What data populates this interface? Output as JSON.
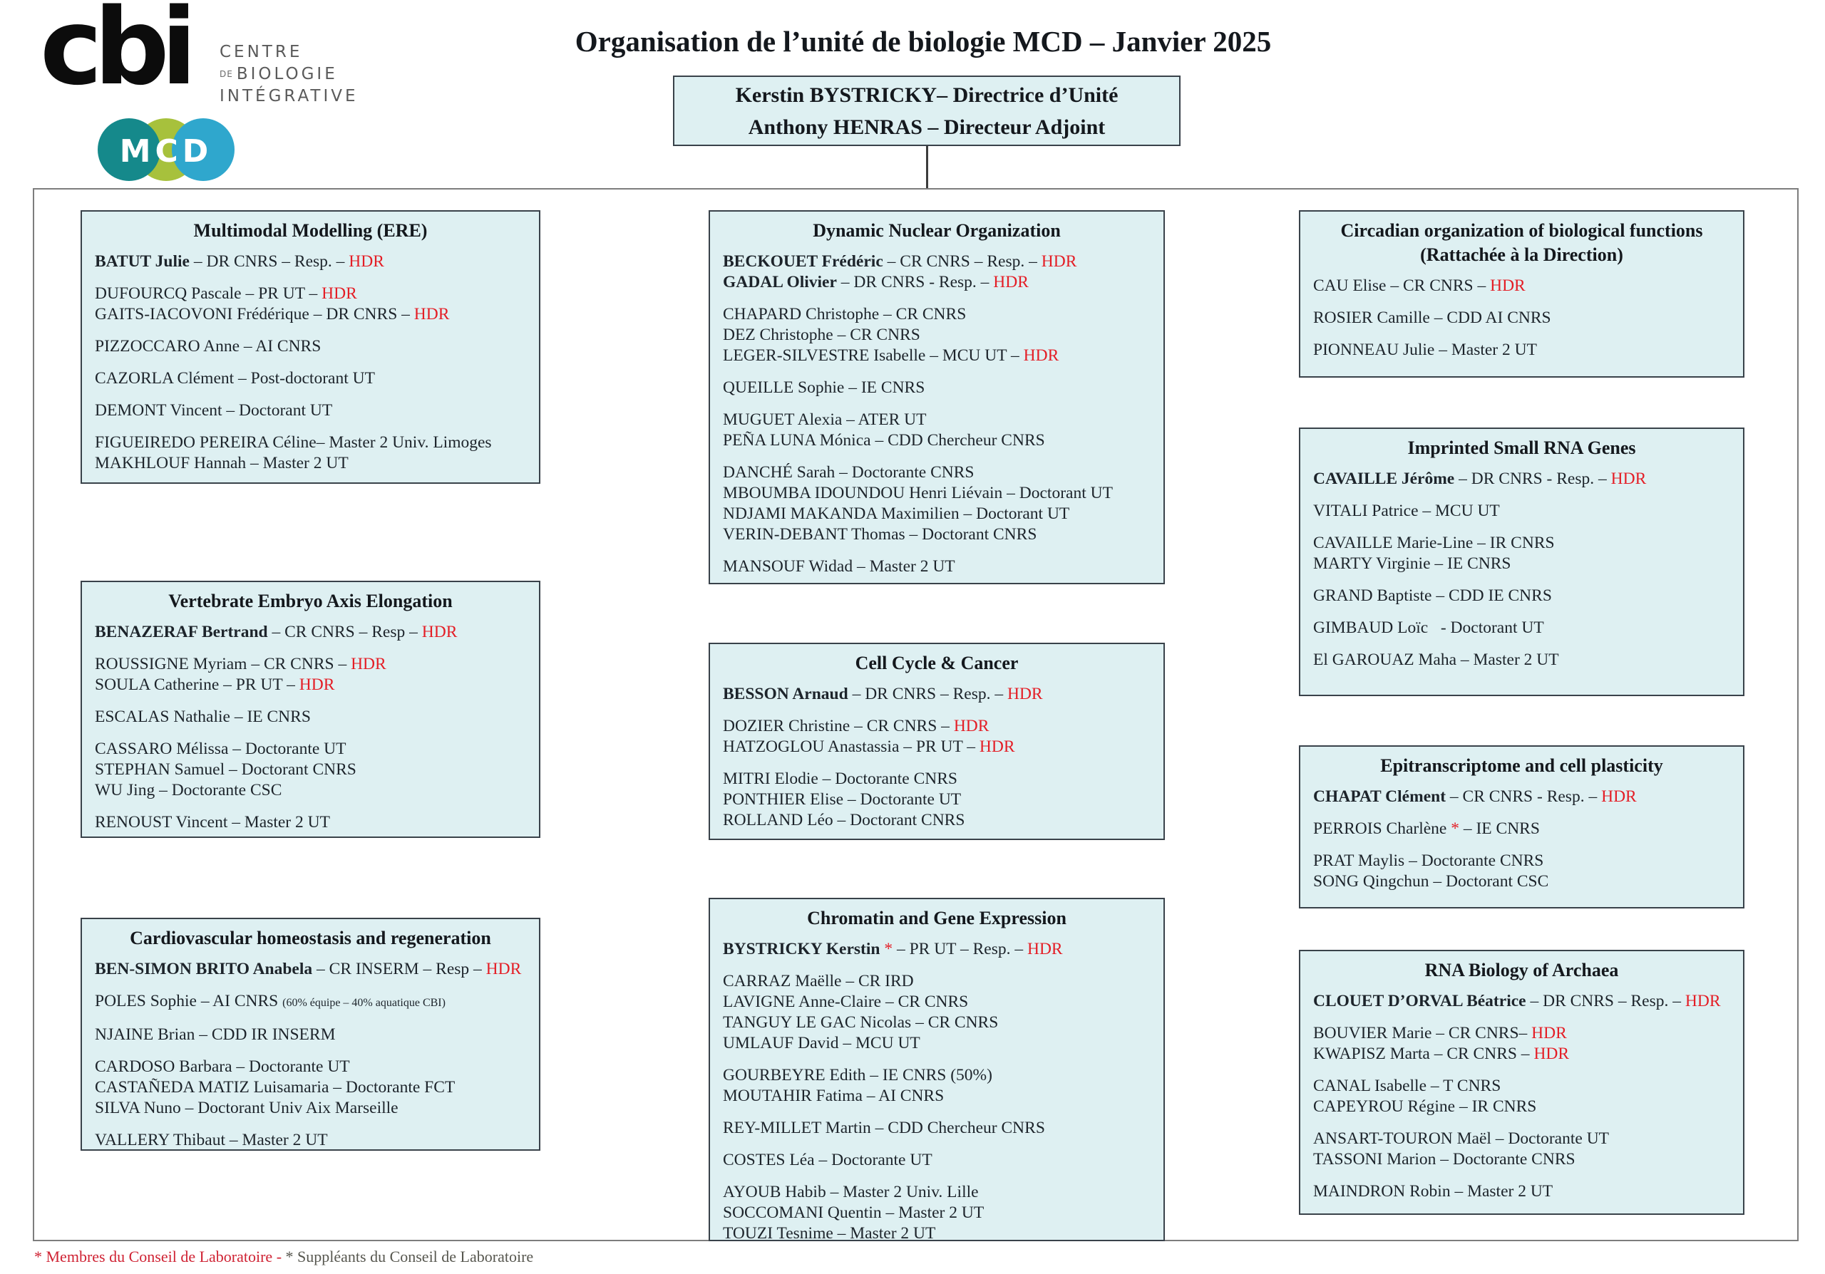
{
  "header": {
    "cbi_logo": {
      "glyph": "cbi",
      "org_line1": "CENTRE",
      "org_de": "DE",
      "org_line2": "BIOLOGIE",
      "org_line3": "INTÉGRATIVE"
    },
    "mcd_logo": {
      "letters": "MCD"
    },
    "title": "Organisation de l’unité de biologie MCD – Janvier 2025",
    "direction_box": {
      "line1": "Kerstin BYSTRICKY– Directrice d’Unité",
      "line2": "Anthony HENRAS – Directeur Adjoint"
    }
  },
  "footer": {
    "members_note": "* Membres du Conseil de Laboratoire - ",
    "substitutes_note": "* Suppléants du Conseil de Laboratoire"
  },
  "colors": {
    "box_fill": "#def0f2",
    "box_border": "#39424a",
    "accent_red": "#e41e26",
    "footer_red": "#cf2233",
    "footer_gray": "#57574f",
    "mcd_teal": "#15898b",
    "mcd_green": "#a7c13c",
    "mcd_blue": "#2fa7cd"
  },
  "teams": [
    {
      "id": "multimodal",
      "title_lines": [
        "Multimodal Modelling (ERE)"
      ],
      "groups": [
        [
          [
            {
              "t": "BATUT Julie",
              "b": true
            },
            {
              "t": " – DR CNRS – Resp. – "
            },
            {
              "t": "HDR",
              "red": true
            }
          ]
        ],
        [
          [
            {
              "t": "DUFOURCQ Pascale – PR UT – "
            },
            {
              "t": "HDR",
              "red": true
            }
          ],
          [
            {
              "t": "GAITS-IACOVONI Frédérique – DR CNRS – "
            },
            {
              "t": "HDR",
              "red": true
            }
          ]
        ],
        [
          [
            {
              "t": "PIZZOCCARO Anne – AI CNRS"
            }
          ]
        ],
        [
          [
            {
              "t": "CAZORLA Clément – Post-doctorant UT"
            }
          ]
        ],
        [
          [
            {
              "t": "DEMONT Vincent – Doctorant UT"
            }
          ]
        ],
        [
          [
            {
              "t": "FIGUEIREDO PEREIRA Céline– Master 2 Univ. Limoges"
            }
          ],
          [
            {
              "t": "MAKHLOUF Hannah – Master 2 UT"
            }
          ]
        ]
      ]
    },
    {
      "id": "vertebrate",
      "title_lines": [
        "Vertebrate Embryo Axis Elongation"
      ],
      "groups": [
        [
          [
            {
              "t": "BENAZERAF Bertrand",
              "b": true
            },
            {
              "t": " – CR CNRS – Resp – "
            },
            {
              "t": "HDR",
              "red": true
            }
          ]
        ],
        [
          [
            {
              "t": "ROUSSIGNE Myriam – CR CNRS – "
            },
            {
              "t": "HDR",
              "red": true
            }
          ],
          [
            {
              "t": "SOULA Catherine – PR UT – "
            },
            {
              "t": "HDR",
              "red": true
            }
          ]
        ],
        [
          [
            {
              "t": "ESCALAS Nathalie – IE CNRS"
            }
          ]
        ],
        [
          [
            {
              "t": "CASSARO Mélissa – Doctorante UT"
            }
          ],
          [
            {
              "t": "STEPHAN Samuel – Doctorant CNRS"
            }
          ],
          [
            {
              "t": "WU Jing – Doctorante CSC"
            }
          ]
        ],
        [
          [
            {
              "t": "RENOUST Vincent – Master 2 UT"
            }
          ]
        ]
      ]
    },
    {
      "id": "cardio",
      "title_lines": [
        "Cardiovascular homeostasis and regeneration"
      ],
      "groups": [
        [
          [
            {
              "t": "BEN-SIMON BRITO Anabela",
              "b": true
            },
            {
              "t": " – CR INSERM – Resp – "
            },
            {
              "t": "HDR",
              "red": true
            }
          ]
        ],
        [
          [
            {
              "t": "POLES Sophie – AI CNRS "
            },
            {
              "t": "(60% équipe – 40% aquatique CBI)",
              "small": true
            }
          ]
        ],
        [
          [
            {
              "t": "NJAINE Brian – CDD IR INSERM"
            }
          ]
        ],
        [
          [
            {
              "t": "CARDOSO Barbara – Doctorante UT"
            }
          ],
          [
            {
              "t": "CASTAÑEDA MATIZ Luisamaria – Doctorante FCT"
            }
          ],
          [
            {
              "t": "SILVA Nuno – Doctorant Univ Aix Marseille"
            }
          ]
        ],
        [
          [
            {
              "t": "VALLERY Thibaut – Master 2 UT"
            }
          ]
        ]
      ]
    },
    {
      "id": "dynamic",
      "title_lines": [
        "Dynamic Nuclear Organization"
      ],
      "groups": [
        [
          [
            {
              "t": "BECKOUET Frédéric",
              "b": true
            },
            {
              "t": " – CR CNRS – Resp. – "
            },
            {
              "t": "HDR",
              "red": true
            }
          ],
          [
            {
              "t": "GADAL Olivier",
              "b": true
            },
            {
              "t": " – DR CNRS - Resp. – "
            },
            {
              "t": "HDR",
              "red": true
            }
          ]
        ],
        [
          [
            {
              "t": "CHAPARD Christophe – CR CNRS"
            }
          ],
          [
            {
              "t": "DEZ Christophe – CR CNRS"
            }
          ],
          [
            {
              "t": "LEGER-SILVESTRE Isabelle – MCU UT – "
            },
            {
              "t": "HDR",
              "red": true
            }
          ]
        ],
        [
          [
            {
              "t": "QUEILLE Sophie – IE CNRS"
            }
          ]
        ],
        [
          [
            {
              "t": "MUGUET Alexia – ATER UT"
            }
          ],
          [
            {
              "t": "PEÑA LUNA Mónica – CDD Chercheur CNRS"
            }
          ]
        ],
        [
          [
            {
              "t": "DANCHÉ Sarah – Doctorante CNRS"
            }
          ],
          [
            {
              "t": "MBOUMBA IDOUNDOU Henri Liévain – Doctorant UT"
            }
          ],
          [
            {
              "t": "NDJAMI MAKANDA Maximilien – Doctorant UT"
            }
          ],
          [
            {
              "t": "VERIN-DEBANT Thomas – Doctorant CNRS"
            }
          ]
        ],
        [
          [
            {
              "t": "MANSOUF Widad – Master 2 UT"
            }
          ]
        ]
      ]
    },
    {
      "id": "cellcycle",
      "title_lines": [
        "Cell Cycle & Cancer"
      ],
      "groups": [
        [
          [
            {
              "t": "BESSON Arnaud",
              "b": true
            },
            {
              "t": " – DR CNRS – Resp. – "
            },
            {
              "t": "HDR",
              "red": true
            }
          ]
        ],
        [
          [
            {
              "t": "DOZIER Christine – CR CNRS – "
            },
            {
              "t": "HDR",
              "red": true
            }
          ],
          [
            {
              "t": "HATZOGLOU Anastassia – PR UT – "
            },
            {
              "t": "HDR",
              "red": true
            }
          ]
        ],
        [
          [
            {
              "t": "MITRI Elodie – Doctorante CNRS"
            }
          ],
          [
            {
              "t": "PONTHIER Elise – Doctorante UT"
            }
          ],
          [
            {
              "t": "ROLLAND Léo – Doctorant CNRS"
            }
          ]
        ]
      ]
    },
    {
      "id": "chromatin",
      "title_lines": [
        "Chromatin and Gene Expression"
      ],
      "groups": [
        [
          [
            {
              "t": "BYSTRICKY Kerstin",
              "b": true
            },
            {
              "t": " *",
              "red": true
            },
            {
              "t": " – PR UT – Resp. – "
            },
            {
              "t": "HDR",
              "red": true
            }
          ]
        ],
        [
          [
            {
              "t": "CARRAZ Maëlle – CR IRD"
            }
          ],
          [
            {
              "t": "LAVIGNE Anne-Claire – CR CNRS"
            }
          ],
          [
            {
              "t": "TANGUY LE GAC Nicolas – CR CNRS"
            }
          ],
          [
            {
              "t": "UMLAUF David – MCU UT"
            }
          ]
        ],
        [
          [
            {
              "t": "GOURBEYRE Edith – IE CNRS (50%)"
            }
          ],
          [
            {
              "t": "MOUTAHIR Fatima – AI CNRS"
            }
          ]
        ],
        [
          [
            {
              "t": "REY-MILLET Martin – CDD Chercheur CNRS"
            }
          ]
        ],
        [
          [
            {
              "t": "COSTES Léa – Doctorante UT"
            }
          ]
        ],
        [
          [
            {
              "t": "AYOUB Habib – Master 2 Univ. Lille"
            }
          ],
          [
            {
              "t": "SOCCOMANI Quentin – Master 2 UT"
            }
          ],
          [
            {
              "t": "TOUZI Tesnime – Master 2 UT"
            }
          ]
        ]
      ]
    },
    {
      "id": "circadian",
      "title_lines": [
        "Circadian organization of biological functions",
        "(Rattachée à la Direction)"
      ],
      "groups": [
        [
          [
            {
              "t": "CAU Elise – CR CNRS – "
            },
            {
              "t": "HDR",
              "red": true
            }
          ]
        ],
        [
          [
            {
              "t": "ROSIER Camille – CDD AI CNRS"
            }
          ]
        ],
        [
          [
            {
              "t": "PIONNEAU Julie – Master 2 UT"
            }
          ]
        ]
      ]
    },
    {
      "id": "imprinted",
      "title_lines": [
        "Imprinted Small RNA Genes"
      ],
      "groups": [
        [
          [
            {
              "t": "CAVAILLE Jérôme",
              "b": true
            },
            {
              "t": " – DR CNRS - Resp. – "
            },
            {
              "t": "HDR",
              "red": true
            }
          ]
        ],
        [
          [
            {
              "t": "VITALI Patrice – MCU UT"
            }
          ]
        ],
        [
          [
            {
              "t": "CAVAILLE Marie-Line – IR CNRS"
            }
          ],
          [
            {
              "t": "MARTY Virginie – IE CNRS"
            }
          ]
        ],
        [
          [
            {
              "t": "GRAND Baptiste – CDD IE CNRS"
            }
          ]
        ],
        [
          [
            {
              "t": "GIMBAUD Loïc   - Doctorant UT"
            }
          ]
        ],
        [
          [
            {
              "t": "El GAROUAZ Maha – Master 2 UT"
            }
          ]
        ]
      ]
    },
    {
      "id": "epitranscriptome",
      "title_lines": [
        "Epitranscriptome and cell plasticity"
      ],
      "groups": [
        [
          [
            {
              "t": "CHAPAT Clément",
              "b": true
            },
            {
              "t": " – CR CNRS - Resp. – "
            },
            {
              "t": "HDR",
              "red": true
            }
          ]
        ],
        [
          [
            {
              "t": "PERROIS Charlène "
            },
            {
              "t": "*",
              "red": true
            },
            {
              "t": " – IE CNRS"
            }
          ]
        ],
        [
          [
            {
              "t": "PRAT Maylis – Doctorante CNRS"
            }
          ],
          [
            {
              "t": "SONG Qingchun – Doctorant CSC"
            }
          ]
        ]
      ]
    },
    {
      "id": "archaea",
      "title_lines": [
        "RNA Biology of Archaea"
      ],
      "groups": [
        [
          [
            {
              "t": "CLOUET D’ORVAL Béatrice",
              "b": true
            },
            {
              "t": " – DR CNRS – Resp. – "
            },
            {
              "t": "HDR",
              "red": true
            }
          ]
        ],
        [
          [
            {
              "t": "BOUVIER Marie – CR CNRS– "
            },
            {
              "t": "HDR",
              "red": true
            }
          ],
          [
            {
              "t": "KWAPISZ Marta – CR CNRS – "
            },
            {
              "t": "HDR",
              "red": true
            }
          ]
        ],
        [
          [
            {
              "t": "CANAL Isabelle – T CNRS"
            }
          ],
          [
            {
              "t": "CAPEYROU Régine – IR CNRS"
            }
          ]
        ],
        [
          [
            {
              "t": "ANSART-TOURON Maël – Doctorante UT"
            }
          ],
          [
            {
              "t": "TASSONI Marion – Doctorante CNRS"
            }
          ]
        ],
        [
          [
            {
              "t": "MAINDRON Robin – Master 2 UT"
            }
          ]
        ]
      ]
    }
  ]
}
